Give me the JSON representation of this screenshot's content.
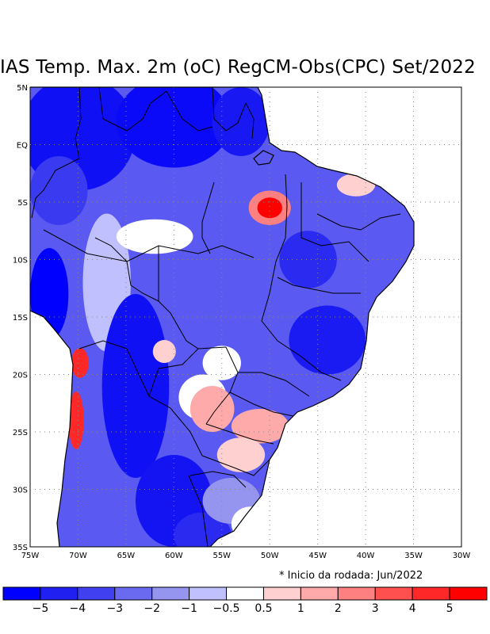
{
  "title": "IAS Temp. Max. 2m (oC) RegCM-Obs(CPC) Set/2022",
  "note": "* Inicio da rodada: Jun/2022",
  "lat_labels": [
    "5N",
    "EQ",
    "5S",
    "10S",
    "15S",
    "20S",
    "25S",
    "30S",
    "35S"
  ],
  "lon_labels": [
    "75W",
    "70W",
    "65W",
    "60W",
    "55W",
    "50W",
    "45W",
    "40W",
    "35W",
    "30W"
  ],
  "colorbar": {
    "colors": [
      "#0000ff",
      "#2020f0",
      "#4040f0",
      "#6a6af0",
      "#9595f0",
      "#c0c0ff",
      "#ffffff",
      "#ffd0d0",
      "#ffaaaa",
      "#ff8080",
      "#ff5050",
      "#ff2828",
      "#ff0000"
    ],
    "labels": [
      "−5",
      "−4",
      "−3",
      "−2",
      "−1",
      "−0.5",
      "0.5",
      "1",
      "2",
      "3",
      "4",
      "5"
    ]
  },
  "field": {
    "base_color": "#5a5af2",
    "blobs": [
      {
        "lon": -70,
        "lat": 1,
        "rx": 6,
        "ry": 5,
        "color": "#1010f5"
      },
      {
        "lon": -60,
        "lat": 2,
        "rx": 6,
        "ry": 4,
        "color": "#0a0af8"
      },
      {
        "lon": -53,
        "lat": 2,
        "rx": 3,
        "ry": 3,
        "color": "#1818f2"
      },
      {
        "lon": -72,
        "lat": -4,
        "rx": 3,
        "ry": 3,
        "color": "#3a3af0"
      },
      {
        "lon": -73,
        "lat": -13,
        "rx": 2,
        "ry": 4,
        "color": "#0000ff"
      },
      {
        "lon": -67,
        "lat": -12,
        "rx": 2.5,
        "ry": 6,
        "color": "#c0c0ff"
      },
      {
        "lon": -62,
        "lat": -8,
        "rx": 4,
        "ry": 1.5,
        "color": "#ffffff"
      },
      {
        "lon": -64,
        "lat": -21,
        "rx": 3.5,
        "ry": 8,
        "color": "#1010f5"
      },
      {
        "lon": -60,
        "lat": -31,
        "rx": 4,
        "ry": 4,
        "color": "#1414f2"
      },
      {
        "lon": -57,
        "lat": -34,
        "rx": 3,
        "ry": 2,
        "color": "#2a2af0"
      },
      {
        "lon": -57,
        "lat": -22,
        "rx": 2.5,
        "ry": 2,
        "color": "#ffffff"
      },
      {
        "lon": -55,
        "lat": -19,
        "rx": 2,
        "ry": 1.5,
        "color": "#ffffff"
      },
      {
        "lon": -56,
        "lat": -23,
        "rx": 2.3,
        "ry": 2,
        "color": "#ffaaaa"
      },
      {
        "lon": -51,
        "lat": -24.5,
        "rx": 3,
        "ry": 1.5,
        "color": "#ffaaaa"
      },
      {
        "lon": -53,
        "lat": -27,
        "rx": 2.5,
        "ry": 1.5,
        "color": "#ffd0d0"
      },
      {
        "lon": -44,
        "lat": -17,
        "rx": 4,
        "ry": 3,
        "color": "#1a1af2"
      },
      {
        "lon": -46,
        "lat": -10,
        "rx": 3,
        "ry": 2.5,
        "color": "#2a2af0"
      },
      {
        "lon": -50,
        "lat": -5.5,
        "rx": 2.2,
        "ry": 1.5,
        "color": "#ff8080"
      },
      {
        "lon": -50,
        "lat": -5.5,
        "rx": 1.3,
        "ry": 0.9,
        "color": "#ff0000"
      },
      {
        "lon": -41,
        "lat": -3.5,
        "rx": 2,
        "ry": 1,
        "color": "#ffd0d0"
      },
      {
        "lon": -54,
        "lat": -31,
        "rx": 3,
        "ry": 2,
        "color": "#9595f0"
      },
      {
        "lon": -69.8,
        "lat": -19,
        "rx": 0.9,
        "ry": 1.3,
        "color": "#ff2828"
      },
      {
        "lon": -70.2,
        "lat": -24,
        "rx": 0.8,
        "ry": 2.5,
        "color": "#ff2828"
      },
      {
        "lon": -61,
        "lat": -18,
        "rx": 1.2,
        "ry": 1,
        "color": "#ffd0d0"
      },
      {
        "lon": -52,
        "lat": -33,
        "rx": 2,
        "ry": 1.5,
        "color": "#ffffff"
      }
    ]
  }
}
